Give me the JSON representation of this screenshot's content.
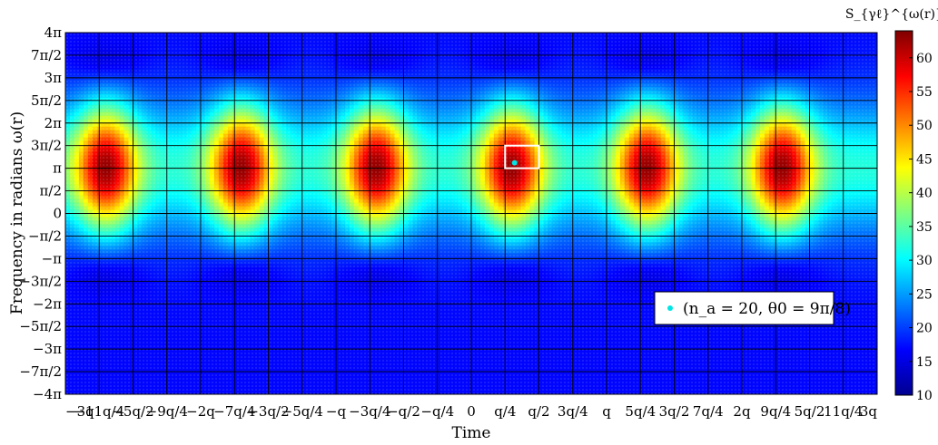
{
  "chart_data": {
    "type": "heatmap",
    "xlabel": "Time",
    "ylabel": "Frequency in radians ω(r)",
    "colorbar_title": "S_{γℓ}^{ω(r)}(Y)",
    "colorbar_ticks": [
      "10",
      "15",
      "20",
      "25",
      "30",
      "35",
      "40",
      "45",
      "50",
      "55",
      "60"
    ],
    "colorbar_range": [
      10,
      64
    ],
    "x_tick_labels": [
      "−3q",
      "−11q/4",
      "−5q/2",
      "−9q/4",
      "−2q",
      "−7q/4",
      "−3q/2",
      "−5q/4",
      "−q",
      "−3q/4",
      "−q/2",
      "−q/4",
      "0",
      "q/4",
      "q/2",
      "3q/4",
      "q",
      "5q/4",
      "3q/2",
      "7q/4",
      "2q",
      "9q/4",
      "5q/2",
      "11q/4",
      "3q"
    ],
    "x_range": [
      -3,
      3
    ],
    "x_unit": "q",
    "y_tick_labels": [
      "4π",
      "7π/2",
      "3π",
      "5π/2",
      "2π",
      "3π/2",
      "π",
      "π/2",
      "0",
      "−π/2",
      "−π",
      "−3π/2",
      "−2π",
      "−5π/2",
      "−3π",
      "−7π/2",
      "−4π"
    ],
    "y_range": [
      -4,
      4
    ],
    "y_unit": "π",
    "peaks": {
      "x": [
        -2.7,
        -1.7,
        -0.7,
        0.3,
        1.3,
        2.3
      ],
      "y": 1.0,
      "value": 63
    },
    "baseline_value": 17,
    "band_center_y": 1.0,
    "grid": true,
    "highlight_point": {
      "x": 0.32,
      "y": 1.12
    },
    "highlight_box": {
      "x0": 0.25,
      "x1": 0.5,
      "y0": 1.0,
      "y1": 1.5
    },
    "legend": {
      "position": "bottom-right",
      "label": "(n_a = 20, θ0 = 9π/8)",
      "marker_color": "#00e5e5"
    }
  }
}
